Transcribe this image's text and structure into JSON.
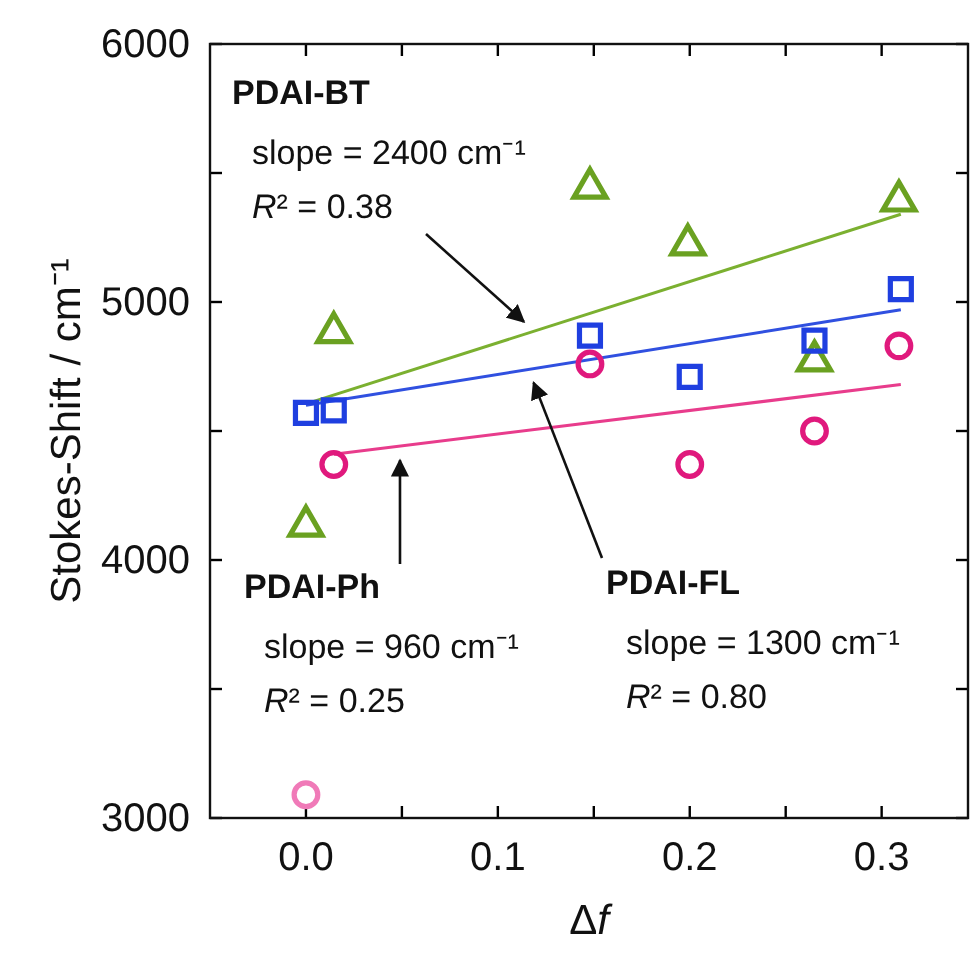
{
  "chart_data": {
    "type": "scatter",
    "xlabel": "Δf",
    "ylabel": "Stokes-Shift / cm⁻¹",
    "xlim": [
      -0.05,
      0.345
    ],
    "ylim": [
      3000,
      6000
    ],
    "xticks": [
      {
        "value": 0,
        "label": "0.0"
      },
      {
        "value": 0.05,
        "label": null
      },
      0.1,
      {
        "value": 0.15,
        "label": null
      },
      0.2,
      {
        "value": 0.25,
        "label": null
      },
      0.3
    ],
    "yticks": [
      3000,
      {
        "value": 3500,
        "label": null
      },
      4000,
      {
        "value": 4500,
        "label": null
      },
      5000,
      {
        "value": 5500,
        "label": null
      },
      6000
    ],
    "grid": false,
    "legend": false,
    "series": [
      {
        "type": "scatter",
        "marker": "triangle",
        "color": "#6aa121",
        "x": [
          0.0,
          0.0145,
          0.148,
          0.199,
          0.265,
          0.309
        ],
        "values": [
          4140,
          4890,
          5450,
          5230,
          4780,
          5400
        ]
      },
      {
        "type": "scatter",
        "marker": "square",
        "color": "#1f3fe0",
        "x": [
          0.0,
          0.0145,
          0.148,
          0.2,
          0.265,
          0.31
        ],
        "values": [
          4570,
          4580,
          4870,
          4710,
          4850,
          5050
        ]
      },
      {
        "type": "scatter",
        "marker": "circle",
        "color": "#e0197d",
        "x": [
          0.0145,
          0.148,
          0.2,
          0.265,
          0.309
        ],
        "values": [
          4370,
          4760,
          4370,
          4500,
          4830
        ]
      },
      {
        "type": "scatter",
        "marker": "circle",
        "color": "#f07ab8",
        "x": [
          0.0
        ],
        "values": [
          3090
        ]
      },
      {
        "type": "line",
        "marker": "none",
        "color": "#7bb030",
        "x": [
          0.0,
          0.31
        ],
        "values": [
          4605,
          5340
        ]
      },
      {
        "type": "line",
        "marker": "none",
        "color": "#3050e0",
        "x": [
          0.0,
          0.31
        ],
        "values": [
          4600,
          4970
        ]
      },
      {
        "type": "line",
        "marker": "none",
        "color": "#e83c8c",
        "x": [
          0.0145,
          0.31
        ],
        "values": [
          4410,
          4680
        ]
      }
    ],
    "annotations": [
      {
        "text": "PDAI-BT\nslope = 2400 cm⁻¹\nR² = 0.38",
        "x": 0.119,
        "y": 4887
      },
      {
        "text": "PDAI-Ph\nslope = 960 cm⁻¹\nR² = 0.25",
        "x": 0.049,
        "y": 4441
      },
      {
        "text": "PDAI-FL\nslope = 1300 cm⁻¹\nR² = 0.80",
        "x": 0.116,
        "y": 4738
      }
    ]
  }
}
